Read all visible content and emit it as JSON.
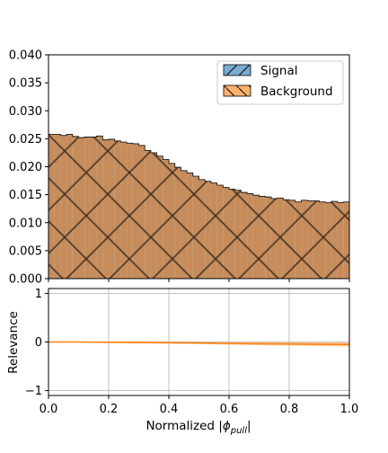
{
  "chart_data": [
    {
      "type": "area",
      "subtype": "step-histogram",
      "ylim": [
        0,
        0.04
      ],
      "xlim": [
        0,
        1
      ],
      "yticks": [
        "0.000",
        "0.005",
        "0.010",
        "0.015",
        "0.020",
        "0.025",
        "0.030",
        "0.035",
        "0.040"
      ],
      "legend_position": "top-right",
      "series": [
        {
          "name": "Signal",
          "color": "#1f77b4",
          "hatch": "/",
          "bin_width": 0.02,
          "values": [
            0.0258,
            0.0258,
            0.0256,
            0.0258,
            0.0254,
            0.0252,
            0.0253,
            0.0253,
            0.0255,
            0.0248,
            0.0249,
            0.0246,
            0.0244,
            0.0242,
            0.0241,
            0.0238,
            0.0229,
            0.0225,
            0.0219,
            0.0213,
            0.0206,
            0.0199,
            0.0193,
            0.0189,
            0.0183,
            0.0177,
            0.0174,
            0.0171,
            0.0167,
            0.0163,
            0.016,
            0.0158,
            0.0154,
            0.0152,
            0.0149,
            0.0147,
            0.0146,
            0.0143,
            0.0144,
            0.0141,
            0.014,
            0.0137,
            0.014,
            0.0139,
            0.0139,
            0.0137,
            0.0136,
            0.0138,
            0.0136,
            0.0137
          ]
        },
        {
          "name": "Background",
          "color": "#ff7f0e",
          "hatch": "\\",
          "bin_width": 0.02,
          "values": [
            0.0258,
            0.0258,
            0.0256,
            0.0258,
            0.0254,
            0.0252,
            0.0253,
            0.0253,
            0.0255,
            0.0248,
            0.0249,
            0.0246,
            0.0244,
            0.0242,
            0.0241,
            0.0238,
            0.0229,
            0.0225,
            0.0219,
            0.0213,
            0.0206,
            0.0199,
            0.0193,
            0.0189,
            0.0183,
            0.0177,
            0.0174,
            0.0171,
            0.0167,
            0.0163,
            0.016,
            0.0158,
            0.0154,
            0.0152,
            0.0149,
            0.0147,
            0.0146,
            0.0143,
            0.0144,
            0.0141,
            0.014,
            0.0137,
            0.014,
            0.0139,
            0.0139,
            0.0137,
            0.0136,
            0.0138,
            0.0136,
            0.0137
          ]
        }
      ]
    },
    {
      "type": "line",
      "ylabel": "Relevance",
      "xlabel": "Normalized |φ_pull|",
      "xlim": [
        0,
        1
      ],
      "ylim": [
        -1.1,
        1.1
      ],
      "xticks": [
        "0.0",
        "0.2",
        "0.4",
        "0.6",
        "0.8",
        "1.0"
      ],
      "yticks": [
        "−1",
        "0",
        "1"
      ],
      "grid": true,
      "series": [
        {
          "color": "#ff7f0e",
          "x": [
            0.0,
            0.1,
            0.2,
            0.3,
            0.4,
            0.5,
            0.6,
            0.7,
            0.8,
            0.9,
            1.0
          ],
          "values": [
            0.0,
            0.0,
            -0.005,
            -0.01,
            -0.015,
            -0.02,
            -0.03,
            -0.035,
            -0.04,
            -0.045,
            -0.05
          ],
          "band": [
            0.01,
            0.01,
            0.012,
            0.015,
            0.018,
            0.02,
            0.025,
            0.03,
            0.035,
            0.04,
            0.045
          ]
        }
      ]
    }
  ],
  "labels": {
    "xlabel_main": "Normalized |",
    "xlabel_phi": "ϕ",
    "xlabel_sub": "pull",
    "xlabel_end": "|",
    "ylabel_ratio": "Relevance"
  }
}
